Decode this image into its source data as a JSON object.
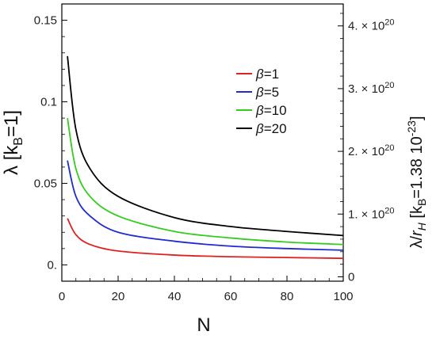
{
  "chart_data": {
    "type": "line",
    "xlabel": "N",
    "ylabel_left": "λ  [k_B=1]",
    "ylabel_right": "λ/r_H [k_B=1.38 10^-23]",
    "xlim": [
      0,
      100
    ],
    "ylim_left": [
      -0.01,
      0.16
    ],
    "ylim_right": [
      -0.07,
      4.35
    ],
    "xticks": [
      0,
      20,
      40,
      60,
      80,
      100
    ],
    "xtick_labels": [
      "0",
      "20",
      "40",
      "60",
      "80",
      "100"
    ],
    "yticks_left": [
      0,
      0.05,
      0.1,
      0.15
    ],
    "ytick_labels_left": [
      "0.",
      "0.05",
      "0.1",
      "0.15"
    ],
    "yticks_right": [
      0,
      1,
      2,
      3,
      4
    ],
    "ytick_labels_right": [
      "0",
      "1. × 10²⁰",
      "2. × 10²⁰",
      "3. × 10²⁰",
      "4. × 10²⁰"
    ],
    "right_axis_unit_note": "×10²⁰",
    "legend_position": "top-right",
    "grid": false,
    "series": [
      {
        "name": "β=1",
        "color": "#e02020",
        "x": [
          2,
          5,
          10,
          20,
          40,
          60,
          80,
          100
        ],
        "y": [
          0.0285,
          0.0185,
          0.0125,
          0.0085,
          0.006,
          0.005,
          0.0045,
          0.004
        ]
      },
      {
        "name": "β=5",
        "color": "#1f2bd0",
        "x": [
          2,
          5,
          10,
          20,
          40,
          60,
          80,
          100
        ],
        "y": [
          0.064,
          0.042,
          0.03,
          0.02,
          0.0145,
          0.0115,
          0.01,
          0.009
        ]
      },
      {
        "name": "β=10",
        "color": "#33cc1f",
        "x": [
          2,
          5,
          10,
          20,
          40,
          60,
          80,
          100
        ],
        "y": [
          0.09,
          0.059,
          0.042,
          0.03,
          0.0205,
          0.0165,
          0.014,
          0.0125
        ]
      },
      {
        "name": "β=20",
        "color": "#000000",
        "x": [
          2,
          5,
          10,
          20,
          40,
          60,
          80,
          100
        ],
        "y": [
          0.128,
          0.083,
          0.059,
          0.042,
          0.029,
          0.0235,
          0.0205,
          0.018
        ]
      }
    ]
  }
}
